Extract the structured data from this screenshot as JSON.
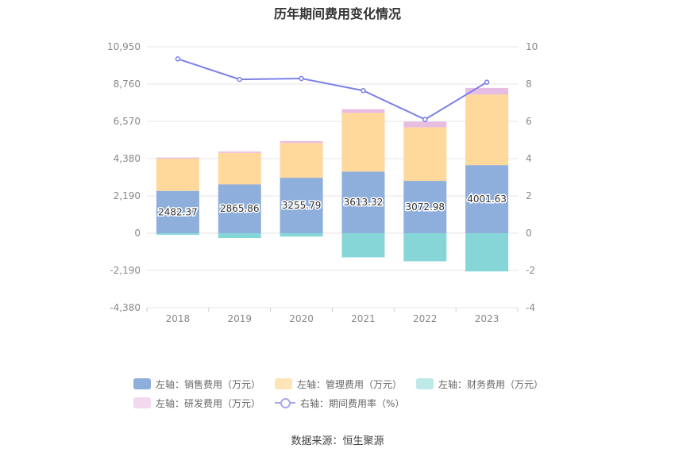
{
  "chart_data": {
    "type": "bar",
    "title": "历年期间费用变化情况",
    "categories": [
      "2018",
      "2019",
      "2020",
      "2021",
      "2022",
      "2023"
    ],
    "left_axis": {
      "ticks": [
        "10,950",
        "8,760",
        "6,570",
        "4,380",
        "2,190",
        "0",
        "-2,190",
        "-4,380"
      ],
      "ylim": [
        -4380,
        10950
      ]
    },
    "right_axis": {
      "ticks": [
        "10",
        "8",
        "6",
        "4",
        "2",
        "0",
        "-2",
        "-4"
      ],
      "ylim": [
        -4,
        10
      ]
    },
    "series": [
      {
        "name": "左轴：销售费用（万元）",
        "type": "bar",
        "axis": "left",
        "color": "#8eaedc",
        "values": [
          2482.37,
          2865.86,
          3255.79,
          3613.32,
          3072.98,
          4001.63
        ],
        "labels": [
          "2482.37",
          "2865.86",
          "3255.79",
          "3613.32",
          "3072.98",
          "4001.63"
        ]
      },
      {
        "name": "左轴：管理费用（万元）",
        "type": "bar",
        "axis": "left",
        "color": "#ffd89c",
        "values": [
          1900,
          1850,
          2050,
          3450,
          3150,
          4150
        ]
      },
      {
        "name": "左轴：财务费用（万元）",
        "type": "bar",
        "axis": "left",
        "color": "#86d6d8",
        "values": [
          -100,
          -280,
          -200,
          -1420,
          -1650,
          -2250
        ]
      },
      {
        "name": "左轴：研发费用（万元）",
        "type": "bar",
        "axis": "left",
        "color": "#e8bde3",
        "values": [
          60,
          80,
          100,
          220,
          330,
          380
        ]
      },
      {
        "name": "右轴：期间费用率（%）",
        "type": "line",
        "axis": "right",
        "color": "#7b80e8",
        "values": [
          9.35,
          8.25,
          8.3,
          7.65,
          6.1,
          8.1
        ]
      }
    ],
    "legend_position": "bottom",
    "grid": true
  },
  "source_text": "数据来源：恒生聚源"
}
